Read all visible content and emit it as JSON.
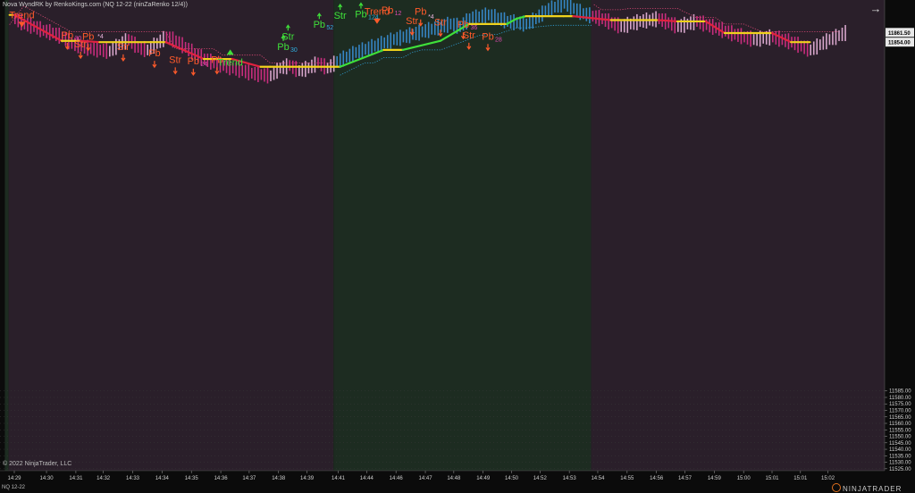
{
  "window": {
    "title": "Nova WyndRK by RenkoKings.com (NQ 12-22 (ninZaRenko 12/4))",
    "copyright": "© 2022 NinjaTrader, LLC",
    "instrument": "NQ 12-22",
    "logo_text": "NINJATRADER",
    "expand_icon": "arrow-right-icon"
  },
  "colors": {
    "background_bear": "#2a1f2a",
    "background_bull": "#1d2c21",
    "trend_bear": "#e0223f",
    "trend_bull": "#3fe03a",
    "pause": "#f0d21c",
    "bar_bear_strong": "#d82f86",
    "bar_bear_weak": "#e9b4dc",
    "bar_bull": "#3a8fd6",
    "label_bear": "#ff5a2a",
    "label_bull": "#3fe03a"
  },
  "chart_data": {
    "type": "line",
    "title": "",
    "xlabel": "",
    "ylabel": "",
    "ylim": [
      11523.5,
      11886.5
    ],
    "y_ticks": [
      11525.0,
      11530.0,
      11535.0,
      11540.0,
      11545.0,
      11550.0,
      11555.0,
      11560.0,
      11565.0,
      11570.0,
      11575.0,
      11580.0,
      11585.0
    ],
    "x_tick_labels": [
      "14:29",
      "14:30",
      "14:31",
      "14:32",
      "14:33",
      "14:34",
      "14:35",
      "14:36",
      "14:37",
      "14:38",
      "14:39",
      "14:41",
      "14:44",
      "14:46",
      "14:47",
      "14:48",
      "14:49",
      "14:50",
      "14:52",
      "14:53",
      "14:54",
      "14:55",
      "14:56",
      "14:57",
      "14:59",
      "15:00",
      "15:01",
      "15:01",
      "15:02"
    ],
    "x_tick_index": [
      0,
      3.4,
      6.5,
      9.4,
      12.5,
      15.6,
      18.7,
      21.8,
      24.8,
      27.9,
      30.9,
      34.2,
      37.2,
      40.3,
      43.4,
      46.4,
      49.5,
      52.5,
      55.5,
      58.6,
      61.6,
      64.7,
      67.8,
      70.8,
      73.9,
      77,
      80,
      83,
      85.9
    ],
    "price_labels": [
      {
        "label": "11861.50",
        "value": 11861.5,
        "style": "light"
      },
      {
        "label": "11854.00",
        "value": 11854.0,
        "style": "light"
      }
    ],
    "regions": [
      {
        "trend": "bull",
        "from": -1,
        "to": -0.6
      },
      {
        "trend": "bear",
        "from": -0.6,
        "to": 33.7
      },
      {
        "trend": "bull",
        "from": 33.7,
        "to": 60.9
      },
      {
        "trend": "bear",
        "from": 60.9,
        "to": 95
      }
    ],
    "series": [
      {
        "kind": "trend_line",
        "x": [
          -0.5,
          0,
          5,
          7,
          9,
          13,
          16,
          20,
          21,
          23,
          26,
          27,
          29,
          31,
          33,
          34.4,
          39,
          41,
          45,
          48,
          49,
          51,
          52,
          53,
          54,
          58,
          59,
          63,
          64,
          68,
          70,
          73,
          75,
          77,
          80,
          82,
          84
        ],
        "y": [
          11875,
          11875,
          11855,
          11855,
          11854,
          11854,
          11854,
          11841,
          11841,
          11841,
          11835,
          11835,
          11835,
          11835,
          11835,
          11835,
          11848,
          11848,
          11855,
          11868,
          11868,
          11868,
          11868,
          11872,
          11874,
          11874,
          11874,
          11871,
          11871,
          11871,
          11870,
          11870,
          11861,
          11861,
          11861,
          11854,
          11854
        ]
      },
      {
        "kind": "trail_stop_bear_1",
        "x": [
          -0.5,
          1,
          6,
          7,
          13,
          16,
          17,
          20,
          21,
          22,
          26,
          27,
          30,
          31,
          33,
          33.7
        ],
        "y": [
          11867.5,
          11882,
          11862,
          11862,
          11862,
          11862,
          11849,
          11849,
          11849,
          11844,
          11844,
          11838,
          11838,
          11838,
          11838,
          11838
        ]
      },
      {
        "kind": "trail_stop_bull",
        "x": [
          34.4,
          37,
          38,
          39,
          41,
          42,
          43,
          45,
          49,
          50,
          51,
          53,
          54,
          57,
          59,
          61
        ],
        "y": [
          11828.5,
          11838,
          11838,
          11842,
          11842,
          11846,
          11848,
          11848,
          11859,
          11860,
          11860,
          11865,
          11865,
          11867,
          11867,
          11867
        ]
      },
      {
        "kind": "trail_stop_bear_2",
        "x": [
          61.2,
          62,
          64,
          65,
          67,
          68,
          70,
          72,
          74,
          75,
          77,
          79,
          82,
          84,
          87
        ],
        "y": [
          11883,
          11879,
          11879,
          11880,
          11880,
          11880,
          11880,
          11873,
          11873,
          11868,
          11868,
          11862,
          11862,
          11862,
          11862
        ]
      }
    ],
    "bars": {
      "segments": [
        {
          "x": [
            0,
            1,
            2,
            3,
            4,
            5,
            6,
            7,
            8,
            9,
            10
          ],
          "y": [
            11872,
            11868,
            11866,
            11863,
            11861,
            11858,
            11853,
            11851,
            11849,
            11848,
            11847
          ]
        },
        {
          "x": [
            10,
            11,
            12,
            13,
            14,
            15,
            16,
            17
          ],
          "y": [
            11847,
            11852,
            11856,
            11850,
            11848,
            11853,
            11858,
            11855
          ]
        },
        {
          "x": [
            17,
            18,
            19,
            20,
            21,
            22,
            23,
            24,
            25,
            26,
            27
          ],
          "y": [
            11855,
            11850,
            11845,
            11841,
            11838,
            11836,
            11834,
            11832,
            11830,
            11829,
            11828
          ]
        },
        {
          "x": [
            27,
            28,
            29,
            30,
            31,
            32,
            33,
            34
          ],
          "y": [
            11828,
            11834,
            11836,
            11832,
            11834,
            11838,
            11834,
            11839
          ]
        },
        {
          "x": [
            34,
            36,
            38,
            40,
            42,
            44,
            46,
            47,
            48,
            50,
            52,
            54,
            55,
            56,
            58,
            60
          ],
          "y": [
            11839,
            11846,
            11851,
            11856,
            11860,
            11864,
            11868,
            11866,
            11872,
            11875,
            11870,
            11868,
            11872,
            11878,
            11884,
            11876
          ]
        },
        {
          "x": [
            60,
            62,
            64,
            66,
            68,
            70,
            72,
            74,
            76,
            78,
            80,
            82,
            84,
            86,
            88
          ],
          "y": [
            11876,
            11872,
            11866,
            11870,
            11872,
            11866,
            11870,
            11865,
            11860,
            11856,
            11858,
            11854,
            11848,
            11856,
            11862
          ]
        }
      ]
    },
    "annotations": [
      {
        "text": "Trend",
        "x": 0.8,
        "y": 11872.5,
        "color": "bear",
        "marker": "triangle-down"
      },
      {
        "text": "Pb",
        "x": 5.6,
        "y": 11857,
        "color": "bear",
        "marker": "arrow-down",
        "small": "30"
      },
      {
        "text": "Pb",
        "x": 7.8,
        "y": 11856,
        "color": "bear",
        "marker": "arrow-down"
      },
      {
        "text": "*4",
        "x": 9.1,
        "y": 11857,
        "color": "weak",
        "marker": "none"
      },
      {
        "text": "Str",
        "x": 7,
        "y": 11850,
        "color": "bear",
        "marker": "arrow-down"
      },
      {
        "text": "Str",
        "x": 11.5,
        "y": 11848,
        "color": "bear",
        "marker": "arrow-down"
      },
      {
        "text": "Pb",
        "x": 14.8,
        "y": 11843,
        "color": "bear",
        "marker": "arrow-down"
      },
      {
        "text": "Str",
        "x": 17,
        "y": 11838,
        "color": "bear",
        "marker": "arrow-down"
      },
      {
        "text": "Pb",
        "x": 18.9,
        "y": 11837,
        "color": "bear",
        "marker": "arrow-down",
        "small": "24"
      },
      {
        "text": "Pb",
        "x": 21.4,
        "y": 11838,
        "color": "bear",
        "marker": "arrow-down"
      },
      {
        "text": "Trend",
        "x": 22.8,
        "y": 11836,
        "color": "bull",
        "marker": "triangle-up"
      },
      {
        "text": "Pb",
        "x": 28.4,
        "y": 11848,
        "color": "bull",
        "marker": "arrow-up",
        "small": "30"
      },
      {
        "text": "Str",
        "x": 28.9,
        "y": 11856,
        "color": "bull",
        "marker": "arrow-up"
      },
      {
        "text": "Pb",
        "x": 32.2,
        "y": 11865,
        "color": "bull",
        "marker": "arrow-up",
        "small": "52"
      },
      {
        "text": "Str",
        "x": 34.4,
        "y": 11872,
        "color": "bull",
        "marker": "arrow-up"
      },
      {
        "text": "Pb",
        "x": 36.6,
        "y": 11873,
        "color": "bull",
        "marker": "arrow-up",
        "small": "124"
      },
      {
        "text": "Trend",
        "x": 38.3,
        "y": 11875,
        "color": "bear",
        "marker": "triangle-down"
      },
      {
        "text": "Pb",
        "x": 39.4,
        "y": 11876,
        "color": "bear",
        "marker": "none",
        "small": "12"
      },
      {
        "text": "Pb",
        "x": 42.9,
        "y": 11875,
        "color": "bear",
        "marker": "arrow-down"
      },
      {
        "text": "*4",
        "x": 44,
        "y": 11872,
        "color": "weak",
        "marker": "none"
      },
      {
        "text": "Str",
        "x": 42,
        "y": 11868,
        "color": "bear",
        "marker": "arrow-down"
      },
      {
        "text": "Str",
        "x": 45,
        "y": 11867,
        "color": "bear",
        "marker": "arrow-down"
      },
      {
        "text": "Pb",
        "x": 47.4,
        "y": 11865,
        "color": "bear",
        "marker": "arrow-down",
        "small": "36"
      },
      {
        "text": "Str",
        "x": 48,
        "y": 11857,
        "color": "bear",
        "marker": "arrow-down"
      },
      {
        "text": "Pb",
        "x": 50,
        "y": 11856,
        "color": "bear",
        "marker": "arrow-down",
        "small": "28"
      }
    ]
  }
}
